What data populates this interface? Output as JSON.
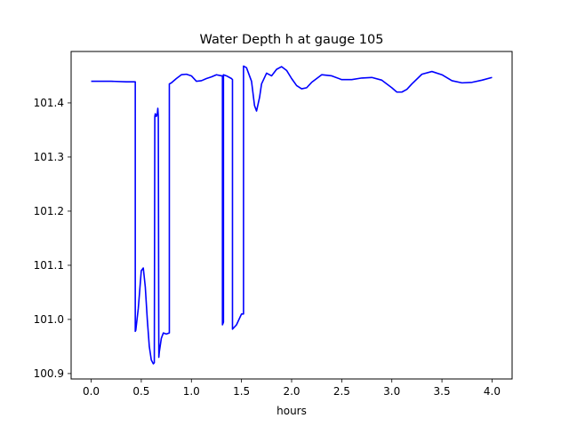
{
  "chart_data": {
    "type": "line",
    "title": "Water Depth h at gauge 105",
    "xlabel": "hours",
    "ylabel": "",
    "xlim": [
      -0.2,
      4.2
    ],
    "ylim": [
      100.89,
      101.495
    ],
    "xticks": [
      0.0,
      0.5,
      1.0,
      1.5,
      2.0,
      2.5,
      3.0,
      3.5,
      4.0
    ],
    "xtick_labels": [
      "0.0",
      "0.5",
      "1.0",
      "1.5",
      "2.0",
      "2.5",
      "3.0",
      "3.5",
      "4.0"
    ],
    "yticks": [
      100.9,
      101.0,
      101.1,
      101.2,
      101.3,
      101.4
    ],
    "ytick_labels": [
      "100.9",
      "101.0",
      "101.1",
      "101.2",
      "101.3",
      "101.4"
    ],
    "grid": false,
    "series": [
      {
        "color": "#0000ff",
        "x": [
          0.0,
          0.2,
          0.35,
          0.44,
          0.44,
          0.445,
          0.47,
          0.5,
          0.52,
          0.54,
          0.56,
          0.58,
          0.6,
          0.62,
          0.63,
          0.635,
          0.64,
          0.65,
          0.66,
          0.665,
          0.67,
          0.675,
          0.68,
          0.7,
          0.72,
          0.75,
          0.78,
          0.78,
          0.8,
          0.85,
          0.9,
          0.95,
          1.0,
          1.05,
          1.1,
          1.15,
          1.2,
          1.25,
          1.3,
          1.31,
          1.31,
          1.32,
          1.32,
          1.35,
          1.4,
          1.41,
          1.41,
          1.45,
          1.5,
          1.52,
          1.52,
          1.55,
          1.6,
          1.63,
          1.65,
          1.68,
          1.7,
          1.75,
          1.8,
          1.85,
          1.9,
          1.95,
          2.0,
          2.05,
          2.1,
          2.15,
          2.2,
          2.3,
          2.4,
          2.5,
          2.6,
          2.7,
          2.8,
          2.9,
          3.0,
          3.05,
          3.1,
          3.15,
          3.2,
          3.3,
          3.4,
          3.5,
          3.6,
          3.7,
          3.8,
          3.9,
          4.0
        ],
        "y": [
          101.44,
          101.44,
          101.439,
          101.439,
          100.978,
          100.98,
          101.02,
          101.09,
          101.095,
          101.06,
          101.0,
          100.95,
          100.925,
          100.918,
          100.92,
          101.375,
          101.38,
          101.375,
          101.38,
          101.39,
          101.375,
          100.93,
          100.94,
          100.965,
          100.975,
          100.973,
          100.975,
          101.435,
          101.437,
          101.445,
          101.452,
          101.453,
          101.45,
          101.44,
          101.441,
          101.445,
          101.448,
          101.452,
          101.45,
          101.45,
          100.99,
          100.995,
          101.452,
          101.45,
          101.445,
          101.443,
          100.982,
          100.99,
          101.01,
          101.01,
          101.468,
          101.465,
          101.44,
          101.395,
          101.385,
          101.41,
          101.435,
          101.455,
          101.45,
          101.462,
          101.467,
          101.46,
          101.445,
          101.432,
          101.426,
          101.428,
          101.438,
          101.452,
          101.45,
          101.443,
          101.443,
          101.446,
          101.447,
          101.442,
          101.428,
          101.42,
          101.42,
          101.425,
          101.435,
          101.453,
          101.458,
          101.452,
          101.441,
          101.437,
          101.438,
          101.442,
          101.447
        ]
      }
    ]
  }
}
